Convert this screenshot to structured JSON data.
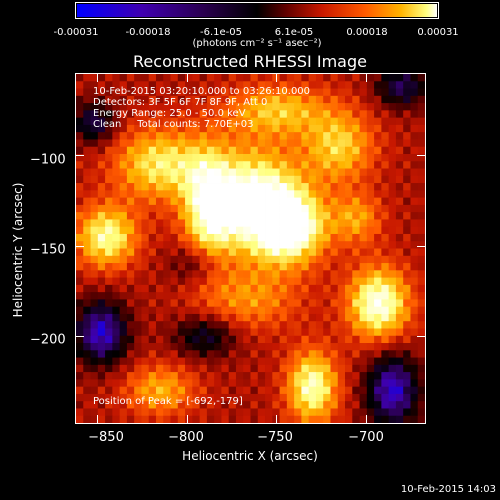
{
  "colorbar": {
    "ticks": [
      "-0.00031",
      "-0.00018",
      "-6.1e-05",
      "6.1e-05",
      "0.00018",
      "0.00031"
    ],
    "units": "(photons cm⁻² s⁻¹ asec⁻²)",
    "min": -0.00031,
    "max": 0.00031,
    "colors": [
      "#0000ff",
      "#3f00b0",
      "#2a0050",
      "#000000",
      "#600000",
      "#c81800",
      "#ff5a00",
      "#ffb400",
      "#ffff80",
      "#ffffff"
    ]
  },
  "info": {
    "time_range": "10-Feb-2015 03:20:10.000 to 03:26:10.000",
    "detectors": "Detectors: 3F 5F 6F 7F 8F 9F, Att 0",
    "energy_range": "Energy Range: 25.0 - 50.0 keV",
    "method": "Clean     Total counts: 7.70E+03",
    "peak": "Position of Peak = [-692,-179]"
  },
  "timestamp": "10-Feb-2015 14:03",
  "chart_data": {
    "type": "heatmap",
    "title": "Reconstructed RHESSI Image",
    "xlabel": "Heliocentric X (arcsec)",
    "ylabel": "Heliocentric Y (arcsec)",
    "xlim": [
      -862,
      -667
    ],
    "ylim": [
      -248,
      -55
    ],
    "xticks": [
      -850,
      -800,
      -750,
      -700
    ],
    "yticks": [
      -100,
      -150,
      -200
    ],
    "xtick_labels": [
      "−850",
      "−800",
      "−750",
      "−700"
    ],
    "ytick_labels": [
      "−100",
      "−150",
      "−200"
    ],
    "peak_position": [
      -692,
      -179
    ],
    "blobs": [
      {
        "x": -762,
        "y": -125,
        "value": 1.0,
        "sx": 18,
        "sy": 20
      },
      {
        "x": -742,
        "y": -140,
        "value": 0.95,
        "sx": 14,
        "sy": 14
      },
      {
        "x": -788,
        "y": -130,
        "value": 0.75,
        "sx": 10,
        "sy": 22
      },
      {
        "x": -815,
        "y": -105,
        "value": 0.7,
        "sx": 18,
        "sy": 14
      },
      {
        "x": -845,
        "y": -145,
        "value": 0.8,
        "sx": 12,
        "sy": 12
      },
      {
        "x": -693,
        "y": -182,
        "value": 0.95,
        "sx": 12,
        "sy": 14
      },
      {
        "x": -715,
        "y": -95,
        "value": 0.6,
        "sx": 14,
        "sy": 14
      },
      {
        "x": -730,
        "y": -228,
        "value": 0.85,
        "sx": 10,
        "sy": 14
      },
      {
        "x": -750,
        "y": -75,
        "value": 0.55,
        "sx": 20,
        "sy": 10
      },
      {
        "x": -815,
        "y": -230,
        "value": 0.5,
        "sx": 14,
        "sy": 10
      },
      {
        "x": -705,
        "y": -135,
        "value": 0.45,
        "sx": 10,
        "sy": 10
      },
      {
        "x": -765,
        "y": -180,
        "value": 0.4,
        "sx": 20,
        "sy": 12
      }
    ],
    "negatives": [
      {
        "x": -848,
        "y": -198,
        "value": -0.9,
        "sx": 10,
        "sy": 12
      },
      {
        "x": -852,
        "y": -82,
        "value": -0.6,
        "sx": 8,
        "sy": 8
      },
      {
        "x": -685,
        "y": -230,
        "value": -0.9,
        "sx": 10,
        "sy": 14
      },
      {
        "x": -680,
        "y": -62,
        "value": -0.6,
        "sx": 10,
        "sy": 8
      },
      {
        "x": -790,
        "y": -200,
        "value": -0.5,
        "sx": 12,
        "sy": 8
      },
      {
        "x": -795,
        "y": -160,
        "value": -0.35,
        "sx": 10,
        "sy": 8
      }
    ]
  }
}
